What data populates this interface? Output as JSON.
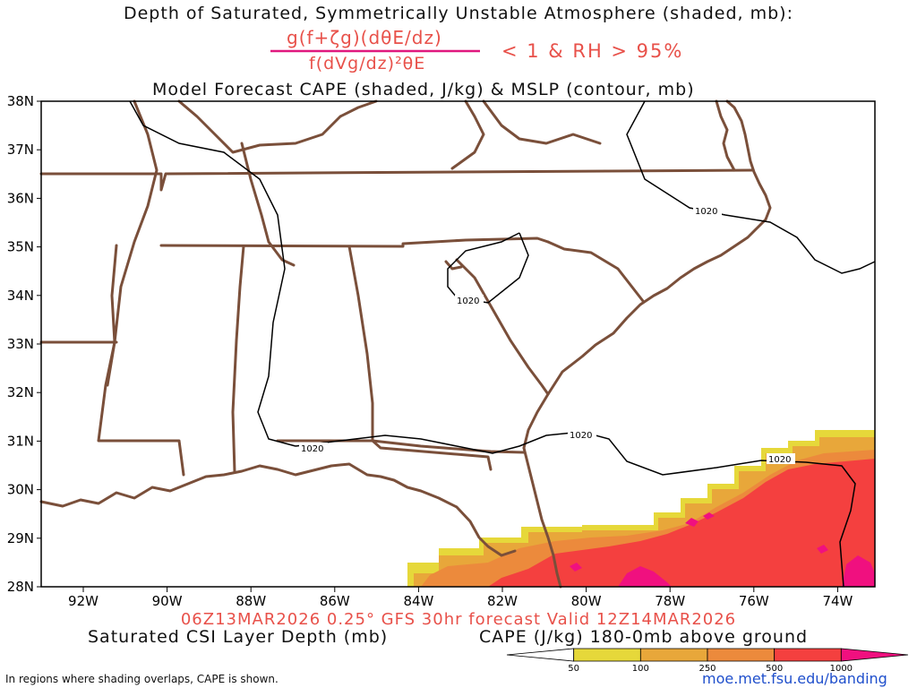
{
  "titles": {
    "line1": "Depth of Saturated, Symmetrically Unstable Atmosphere (shaded, mb):",
    "numerator": "g(f+ζg)(dθE/dz)",
    "denominator": "f(dVg/dz)²θE",
    "condition": "< 1 & RH > 95%",
    "line3": "Model Forecast CAPE (shaded, J/kg) & MSLP (contour, mb)"
  },
  "footer": {
    "run_info": "06Z13MAR2026 0.25° GFS 30hr forecast Valid 12Z14MAR2026",
    "csi_label": "Saturated CSI Layer Depth (mb)",
    "cape_label": "CAPE (J/kg) 180-0mb above ground",
    "note": "In regions where shading overlaps, CAPE is shown.",
    "url": "moe.met.fsu.edu/banding"
  },
  "map": {
    "lat_labels": [
      "38N",
      "37N",
      "36N",
      "35N",
      "34N",
      "33N",
      "32N",
      "31N",
      "30N",
      "29N",
      "28N"
    ],
    "lon_labels": [
      "92W",
      "90W",
      "88W",
      "86W",
      "84W",
      "82W",
      "80W",
      "78W",
      "76W",
      "74W"
    ],
    "isobar_labels": [
      "1020",
      "1020",
      "1020",
      "1020",
      "1020"
    ],
    "colors": {
      "border": "#7a4f3a",
      "isobar": "#000000",
      "cape_50": "#e6d83a",
      "cape_100": "#e8a73a",
      "cape_250": "#ec8a3c",
      "cape_500": "#f4403f",
      "cape_1000": "#f0107f"
    }
  },
  "colorbar": {
    "labels": [
      "50",
      "100",
      "250",
      "500",
      "1000"
    ],
    "colors": [
      "#ffffff",
      "#e6d83a",
      "#e8a73a",
      "#ec8a3c",
      "#f4403f",
      "#f0107f"
    ]
  }
}
